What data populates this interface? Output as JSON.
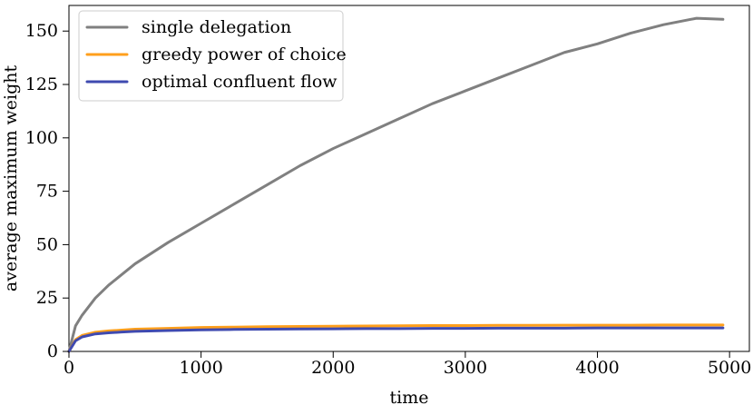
{
  "chart_data": {
    "type": "line",
    "xlabel": "time",
    "ylabel": "average maximum weight",
    "xlim": [
      0,
      5150
    ],
    "ylim": [
      0,
      162
    ],
    "x_ticks": [
      0,
      1000,
      2000,
      3000,
      4000,
      5000
    ],
    "x_tick_labels": [
      "0",
      "1000",
      "2000",
      "3000",
      "4000",
      "5000"
    ],
    "y_ticks": [
      0,
      25,
      50,
      75,
      100,
      125,
      150
    ],
    "y_tick_labels": [
      "0",
      "25",
      "50",
      "75",
      "100",
      "125",
      "150"
    ],
    "grid": false,
    "legend_position": "top-left",
    "x": [
      0,
      50,
      100,
      200,
      300,
      400,
      500,
      750,
      1000,
      1250,
      1500,
      1750,
      2000,
      2250,
      2500,
      2750,
      3000,
      3250,
      3500,
      3750,
      4000,
      4250,
      4500,
      4750,
      4950
    ],
    "series": [
      {
        "name": "single delegation",
        "color": "#808080",
        "values": [
          0,
          12,
          17,
          25,
          31,
          36,
          41,
          51,
          60,
          69,
          78,
          87,
          95,
          102,
          109,
          116,
          122,
          128,
          134,
          140,
          144,
          149,
          153,
          156,
          155.5
        ]
      },
      {
        "name": "greedy power of choice",
        "color": "#ff9f1c",
        "values": [
          0,
          5.5,
          7.5,
          9.0,
          9.6,
          10.0,
          10.4,
          10.8,
          11.2,
          11.4,
          11.6,
          11.7,
          11.8,
          11.9,
          12.0,
          12.1,
          12.1,
          12.2,
          12.2,
          12.3,
          12.3,
          12.3,
          12.4,
          12.4,
          12.4
        ]
      },
      {
        "name": "optimal confluent flow",
        "color": "#3f4ab0",
        "values": [
          0,
          5.0,
          6.8,
          8.2,
          8.7,
          9.1,
          9.4,
          9.8,
          10.1,
          10.3,
          10.4,
          10.5,
          10.6,
          10.7,
          10.7,
          10.8,
          10.8,
          10.9,
          10.9,
          10.9,
          11.0,
          11.0,
          11.0,
          11.0,
          11.0
        ]
      }
    ]
  }
}
